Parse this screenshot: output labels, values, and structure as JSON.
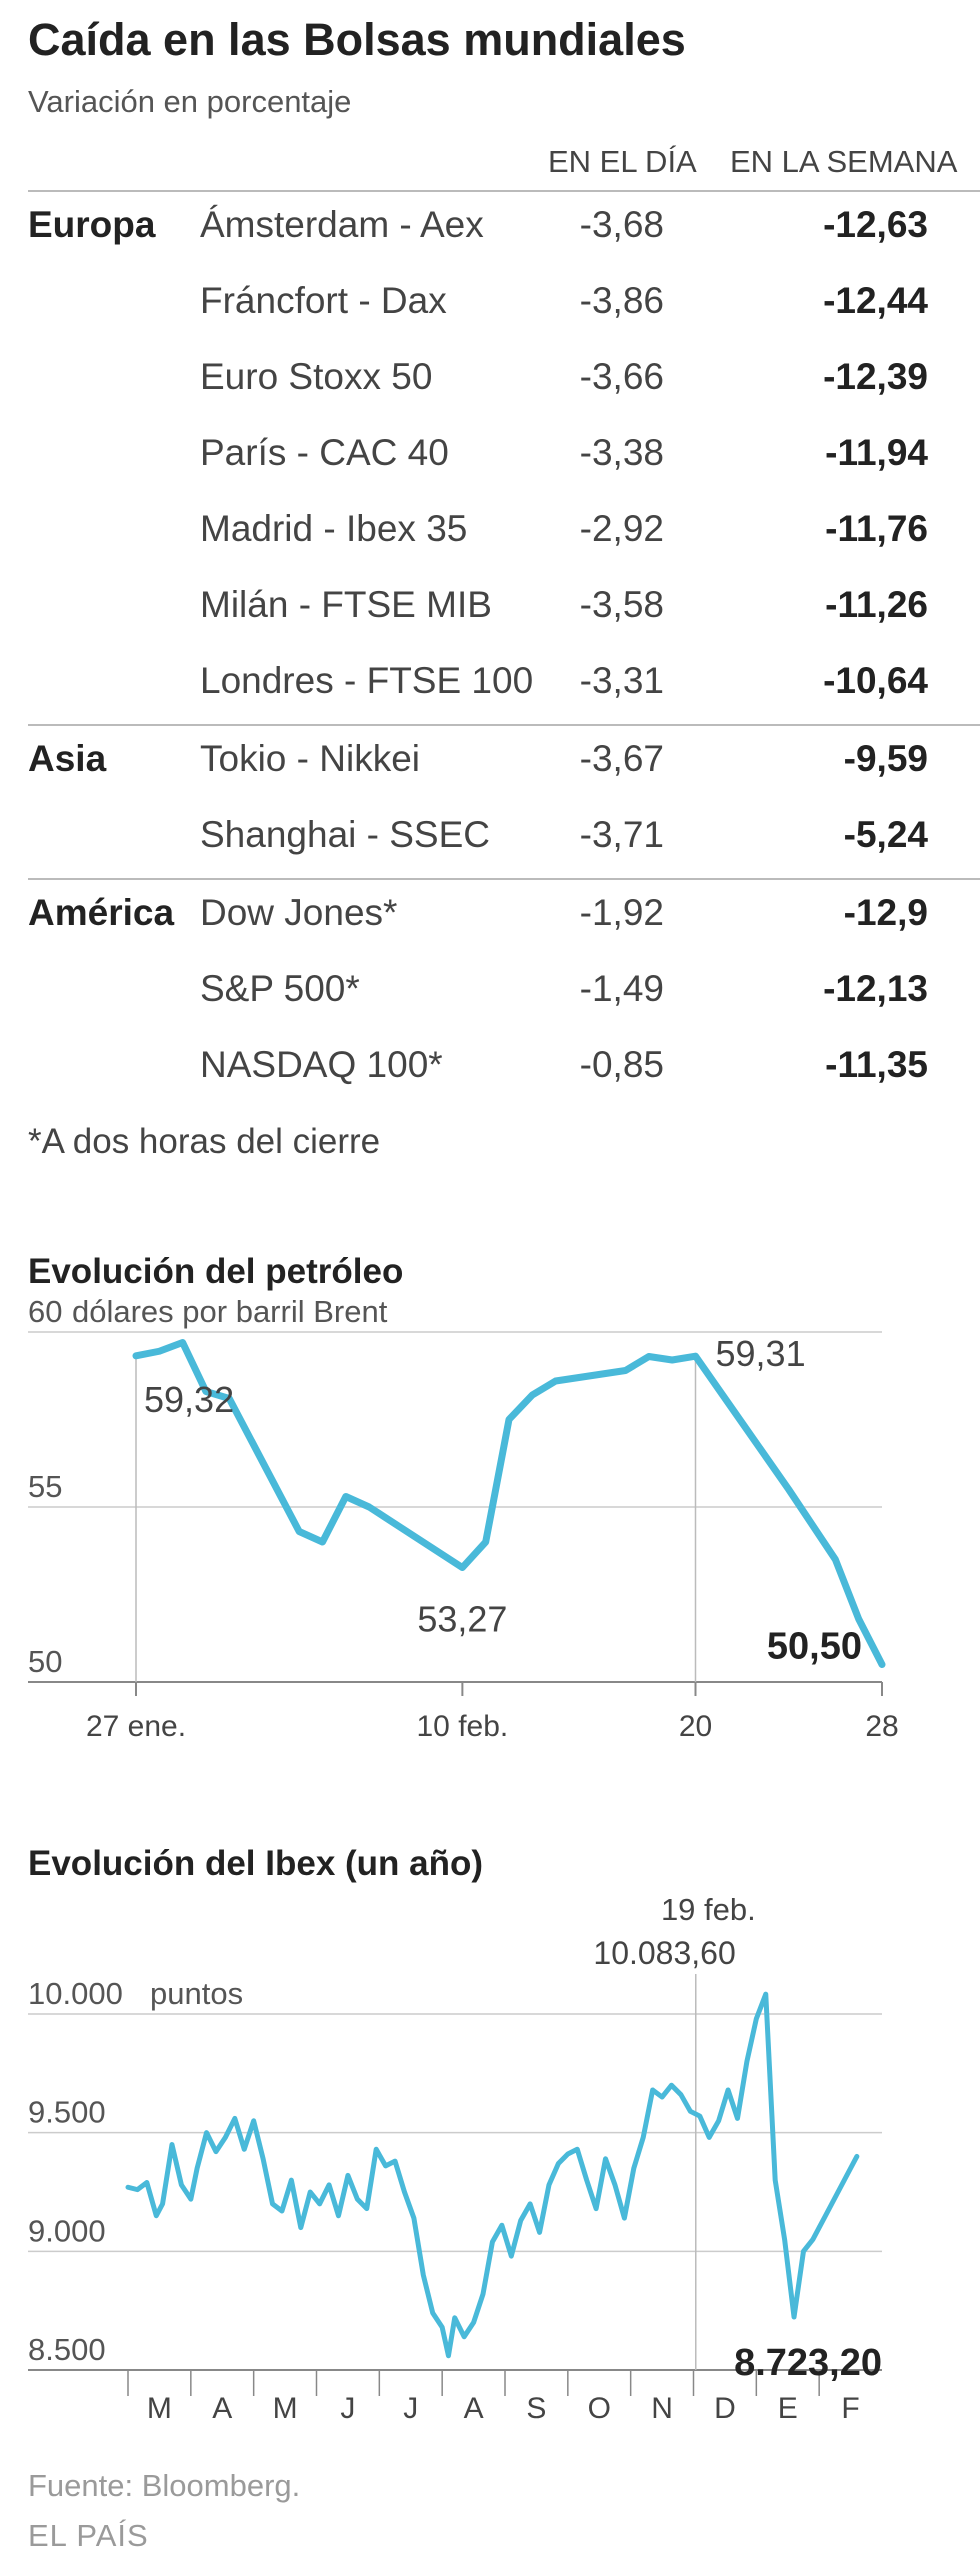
{
  "header": {
    "title": "Caída en las Bolsas mundiales",
    "subtitle": "Variación en porcentaje",
    "col_day": "EN EL DÍA",
    "col_week": "EN LA SEMANA"
  },
  "table": {
    "regions": [
      {
        "name": "Europa",
        "rows": [
          {
            "market": "Ámsterdam - Aex",
            "day": "-3,68",
            "week": "-12,63"
          },
          {
            "market": "Fráncfort - Dax",
            "day": "-3,86",
            "week": "-12,44"
          },
          {
            "market": "Euro Stoxx 50",
            "day": "-3,66",
            "week": "-12,39"
          },
          {
            "market": "París - CAC 40",
            "day": "-3,38",
            "week": "-11,94"
          },
          {
            "market": "Madrid - Ibex 35",
            "day": "-2,92",
            "week": "-11,76"
          },
          {
            "market": "Milán - FTSE MIB",
            "day": "-3,58",
            "week": "-11,26"
          },
          {
            "market": "Londres - FTSE 100",
            "day": "-3,31",
            "week": "-10,64"
          }
        ]
      },
      {
        "name": "Asia",
        "rows": [
          {
            "market": "Tokio - Nikkei",
            "day": "-3,67",
            "week": "-9,59"
          },
          {
            "market": "Shanghai - SSEC",
            "day": "-3,71",
            "week": "-5,24"
          }
        ]
      },
      {
        "name": "América",
        "rows": [
          {
            "market": "Dow Jones*",
            "day": "-1,92",
            "week": "-12,9"
          },
          {
            "market": "S&P 500*",
            "day": "-1,49",
            "week": "-12,13"
          },
          {
            "market": "NASDAQ 100*",
            "day": "-0,85",
            "week": "-11,35"
          }
        ]
      }
    ],
    "footnote": "*A dos horas del cierre"
  },
  "chart_data": [
    {
      "type": "line",
      "title": "Evolución del petróleo",
      "ylabel": "dólares por barril Brent",
      "ylim": [
        50,
        60
      ],
      "yticks": [
        60,
        55,
        50
      ],
      "ytick_labels": [
        "60",
        "55",
        "50"
      ],
      "xlim": [
        0,
        32
      ],
      "xticks": [
        0,
        14,
        24,
        32
      ],
      "xtick_labels": [
        "27 ene.",
        "10 feb.",
        "20",
        "28"
      ],
      "series": [
        {
          "x": [
            0,
            1,
            2,
            3,
            4,
            7,
            8,
            9,
            10,
            14,
            15,
            16,
            17,
            18,
            21,
            22,
            23,
            24,
            28,
            30,
            31,
            32
          ],
          "y": [
            59.32,
            59.45,
            59.7,
            58.3,
            58.1,
            54.3,
            54.0,
            55.3,
            55.0,
            53.27,
            54.0,
            57.5,
            58.2,
            58.6,
            58.9,
            59.3,
            59.2,
            59.31,
            55.5,
            53.5,
            51.8,
            50.5
          ]
        }
      ],
      "annotations": [
        {
          "label": "59,32",
          "x": 0,
          "y": 59.32
        },
        {
          "label": "53,27",
          "x": 14,
          "y": 53.27
        },
        {
          "label": "59,31",
          "x": 24,
          "y": 59.31
        },
        {
          "label": "50,50",
          "x": 32,
          "y": 50.5
        }
      ],
      "line_color": "#49b9d9"
    },
    {
      "type": "line",
      "title": "Evolución del Ibex (un año)",
      "ylabel": "puntos",
      "ylim": [
        8500,
        10000
      ],
      "yticks": [
        10000,
        9500,
        9000,
        8500
      ],
      "ytick_labels": [
        "10.000",
        "9.500",
        "9.000",
        "8.500"
      ],
      "xlim": [
        0,
        12
      ],
      "xtick_labels": [
        "M",
        "A",
        "M",
        "J",
        "J",
        "A",
        "S",
        "O",
        "N",
        "D",
        "E",
        "F"
      ],
      "series": [
        {
          "x": [
            0,
            0.15,
            0.3,
            0.45,
            0.55,
            0.7,
            0.85,
            1.0,
            1.1,
            1.25,
            1.4,
            1.55,
            1.7,
            1.85,
            2.0,
            2.15,
            2.3,
            2.45,
            2.6,
            2.75,
            2.9,
            3.05,
            3.2,
            3.35,
            3.5,
            3.65,
            3.8,
            3.95,
            4.1,
            4.25,
            4.4,
            4.55,
            4.7,
            4.85,
            5.0,
            5.1,
            5.2,
            5.35,
            5.5,
            5.65,
            5.8,
            5.95,
            6.1,
            6.25,
            6.4,
            6.55,
            6.7,
            6.85,
            7.0,
            7.15,
            7.3,
            7.45,
            7.6,
            7.75,
            7.9,
            8.05,
            8.2,
            8.35,
            8.5,
            8.65,
            8.8,
            8.95,
            9.1,
            9.25,
            9.4,
            9.55,
            9.7,
            9.85,
            10.0,
            10.15,
            10.3,
            10.45,
            10.6,
            10.75,
            10.9,
            11.0,
            11.1,
            11.2,
            11.3,
            11.4,
            11.5,
            11.6
          ],
          "y": [
            9270,
            9260,
            9290,
            9150,
            9200,
            9450,
            9280,
            9220,
            9350,
            9500,
            9420,
            9480,
            9560,
            9430,
            9550,
            9390,
            9200,
            9170,
            9300,
            9100,
            9250,
            9200,
            9280,
            9150,
            9320,
            9220,
            9180,
            9430,
            9360,
            9380,
            9250,
            9140,
            8900,
            8740,
            8680,
            8560,
            8720,
            8640,
            8700,
            8820,
            9040,
            9110,
            8980,
            9130,
            9200,
            9080,
            9280,
            9370,
            9410,
            9430,
            9300,
            9180,
            9390,
            9280,
            9140,
            9350,
            9480,
            9680,
            9650,
            9700,
            9660,
            9590,
            9570,
            9480,
            9550,
            9680,
            9560,
            9800,
            9980,
            10083.6,
            9300,
            9050,
            8723.2,
            9000,
            9050,
            9100,
            9150,
            9200,
            9250,
            9300,
            9350,
            9400
          ]
        }
      ],
      "annotations": [
        {
          "label": "19 feb.",
          "value": "10.083,60"
        },
        {
          "label": "8.723,20"
        }
      ],
      "line_color": "#49b9d9"
    }
  ],
  "footer": {
    "source": "Fuente: Bloomberg.",
    "brand": "EL PAÍS"
  }
}
